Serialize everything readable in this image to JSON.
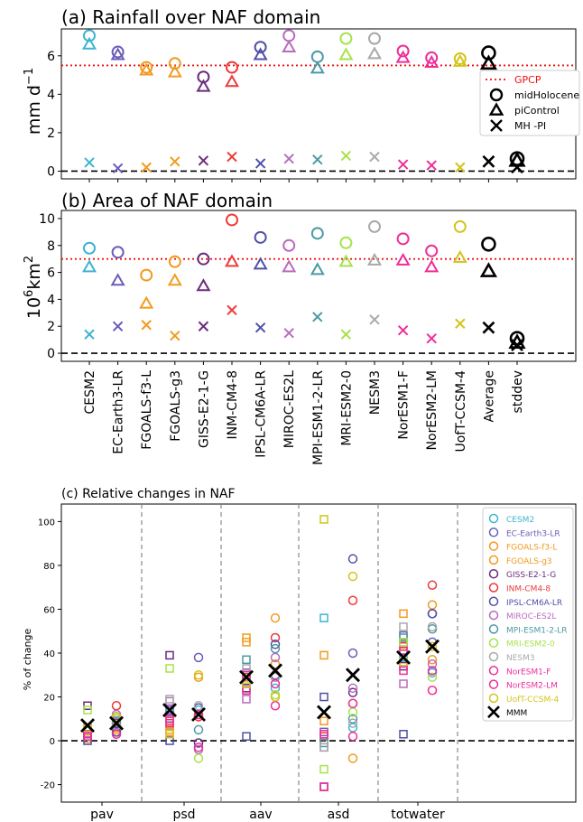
{
  "colors": {
    "CESM2": "#3cb4d2",
    "EC-Earth3-LR": "#6a5dbb",
    "FGOALS-f3-L": "#f39a1e",
    "FGOALS-g3": "#f39a1e",
    "GISS-E2-1-G": "#6b2c7c",
    "INM-CM4-8": "#ee3a3a",
    "IPSL-CM6A-LR": "#4f4fa8",
    "MIROC-ES2L": "#b96bc0",
    "MPI-ESM1-2-LR": "#4a9aa4",
    "MRI-ESM2-0": "#a6e34a",
    "NESM3": "#a9a9a9",
    "NorESM1-F": "#ee2d9a",
    "NorESM2-LM": "#ee2d9a",
    "UofT-CCSM-4": "#d4c41a",
    "Average": "#000000",
    "stddev": "#000000",
    "gpcp": "#ee1111"
  },
  "chart_data": [
    {
      "type": "scatter",
      "title": "(a) Rainfall over NAF domain",
      "ylabel_main": "mm d",
      "ylabel_sup": "−1",
      "ylim": [
        -0.4,
        7.4
      ],
      "yticks": [
        0,
        2,
        4,
        6
      ],
      "categories": [
        "CESM2",
        "EC-Earth3-LR",
        "FGOALS-f3-L",
        "FGOALS-g3",
        "GISS-E2-1-G",
        "INM-CM4-8",
        "IPSL-CM6A-LR",
        "MIROC-ES2L",
        "MPI-ESM1-2-LR",
        "MRI-ESM2-0",
        "NESM3",
        "NorESM1-F",
        "NorESM2-LM",
        "UofT-CCSM-4",
        "Average",
        "stddev"
      ],
      "reference": {
        "name": "GPCP",
        "value": 5.5
      },
      "series": [
        {
          "name": "midHolocene",
          "marker": "circle",
          "values": [
            7.05,
            6.2,
            5.4,
            5.6,
            4.9,
            5.4,
            6.45,
            7.05,
            5.95,
            6.9,
            6.9,
            6.25,
            5.9,
            5.85,
            6.15,
            0.65
          ]
        },
        {
          "name": "piControl",
          "marker": "triangle",
          "values": [
            6.6,
            6.05,
            5.25,
            5.15,
            4.4,
            4.65,
            6.05,
            6.45,
            5.35,
            6.05,
            6.1,
            5.9,
            5.65,
            5.7,
            5.6,
            0.55
          ]
        },
        {
          "name": "MH -PI",
          "marker": "x",
          "values": [
            0.45,
            0.15,
            0.2,
            0.5,
            0.55,
            0.75,
            0.4,
            0.65,
            0.6,
            0.8,
            0.75,
            0.35,
            0.3,
            0.2,
            0.5,
            0.2
          ]
        }
      ],
      "legend": [
        "GPCP",
        "midHolocene",
        "piControl",
        "MH -PI"
      ],
      "legend_position": "right"
    },
    {
      "type": "scatter",
      "title": "(b) Area of NAF domain",
      "ylabel_main": "10",
      "ylabel_sup": "6",
      "ylabel_tail": "km",
      "ylabel_sup2": "2",
      "ylim": [
        -0.6,
        10.6
      ],
      "yticks": [
        0,
        2,
        4,
        6,
        8,
        10
      ],
      "categories": [
        "CESM2",
        "EC-Earth3-LR",
        "FGOALS-f3-L",
        "FGOALS-g3",
        "GISS-E2-1-G",
        "INM-CM4-8",
        "IPSL-CM6A-LR",
        "MIROC-ES2L",
        "MPI-ESM1-2-LR",
        "MRI-ESM2-0",
        "NESM3",
        "NorESM1-F",
        "NorESM2-LM",
        "UofT-CCSM-4",
        "Average",
        "stddev"
      ],
      "reference": {
        "name": "GPCP",
        "value": 7.0
      },
      "series": [
        {
          "name": "midHolocene",
          "marker": "circle",
          "values": [
            7.8,
            7.5,
            5.8,
            6.8,
            7.0,
            9.9,
            8.6,
            8.0,
            8.9,
            8.2,
            9.4,
            8.5,
            7.6,
            9.4,
            8.1,
            1.1
          ]
        },
        {
          "name": "piControl",
          "marker": "triangle",
          "values": [
            6.4,
            5.4,
            3.7,
            5.4,
            5.0,
            6.8,
            6.6,
            6.4,
            6.2,
            6.8,
            6.9,
            6.9,
            6.4,
            7.1,
            6.1,
            0.8
          ]
        },
        {
          "name": "MH -PI",
          "marker": "x",
          "values": [
            1.4,
            2.0,
            2.1,
            1.3,
            2.0,
            3.2,
            1.9,
            1.5,
            2.7,
            1.4,
            2.5,
            1.7,
            1.1,
            2.2,
            1.9,
            0.6
          ]
        }
      ]
    },
    {
      "type": "scatter",
      "title": "(c) Relative changes in NAF",
      "ylabel": "% of change",
      "ylim": [
        -28,
        108
      ],
      "yticks": [
        -20,
        0,
        20,
        40,
        60,
        80,
        100
      ],
      "categories": [
        "pav",
        "psd",
        "aav",
        "asd",
        "totwater"
      ],
      "markers_note": "squares = piControl-relative group (left), circles = group (right), X = MMM",
      "models": [
        "CESM2",
        "EC-Earth3-LR",
        "FGOALS-f3-L",
        "FGOALS-g3",
        "GISS-E2-1-G",
        "INM-CM4-8",
        "IPSL-CM6A-LR",
        "MIROC-ES2L",
        "MPI-ESM1-2-LR",
        "MRI-ESM2-0",
        "NESM3",
        "NorESM1-F",
        "NorESM2-LM",
        "UofT-CCSM-4"
      ],
      "squares": {
        "pav": [
          1,
          3,
          1,
          2,
          16,
          2,
          0,
          5,
          6,
          14,
          6,
          3,
          2,
          6
        ],
        "psd": [
          7,
          14,
          4,
          5,
          39,
          8,
          0,
          18,
          13,
          33,
          19,
          10,
          9,
          3
        ],
        "aav": [
          26,
          31,
          45,
          47,
          24,
          29,
          2,
          19,
          37,
          28,
          33,
          23,
          30,
          26
        ],
        "asd": [
          56,
          4,
          39,
          9,
          -21,
          2,
          20,
          -3,
          -1,
          -13,
          -3,
          -21,
          3,
          101
        ],
        "totwater": [
          38,
          48,
          58,
          44,
          34,
          43,
          3,
          26,
          47,
          45,
          52,
          32,
          41,
          36
        ]
      },
      "circles": {
        "pav": [
          7,
          10,
          5,
          6,
          8,
          16,
          4,
          12,
          9,
          10,
          7,
          11,
          3,
          11
        ],
        "psd": [
          14,
          38,
          11,
          29,
          -1,
          11,
          15,
          -4,
          5,
          -8,
          16,
          -3,
          12,
          30
        ],
        "aav": [
          24,
          30,
          56,
          35,
          29,
          47,
          44,
          38,
          42,
          21,
          29,
          26,
          16,
          20
        ],
        "asd": [
          6,
          40,
          -8,
          17,
          22,
          64,
          83,
          24,
          10,
          13,
          8,
          17,
          2,
          75
        ],
        "totwater": [
          31,
          45,
          62,
          37,
          58,
          71,
          58,
          35,
          51,
          29,
          52,
          32,
          23,
          43
        ]
      },
      "mmm": {
        "pav": [
          7,
          8
        ],
        "psd": [
          14,
          12
        ],
        "aav": [
          29,
          32
        ],
        "asd": [
          13,
          30
        ],
        "totwater": [
          38,
          43
        ]
      },
      "legend": [
        "CESM2",
        "EC-Earth3-LR",
        "FGOALS-f3-L",
        "FGOALS-g3",
        "GISS-E2-1-G",
        "INM-CM4-8",
        "IPSL-CM6A-LR",
        "MIROC-ES2L",
        "MPI-ESM1-2-LR",
        "MRI-ESM2-0",
        "NESM3",
        "NorESM1-F",
        "NorESM2-LM",
        "UofT-CCSM-4",
        "MMM"
      ],
      "legend_position": "top-right"
    }
  ]
}
